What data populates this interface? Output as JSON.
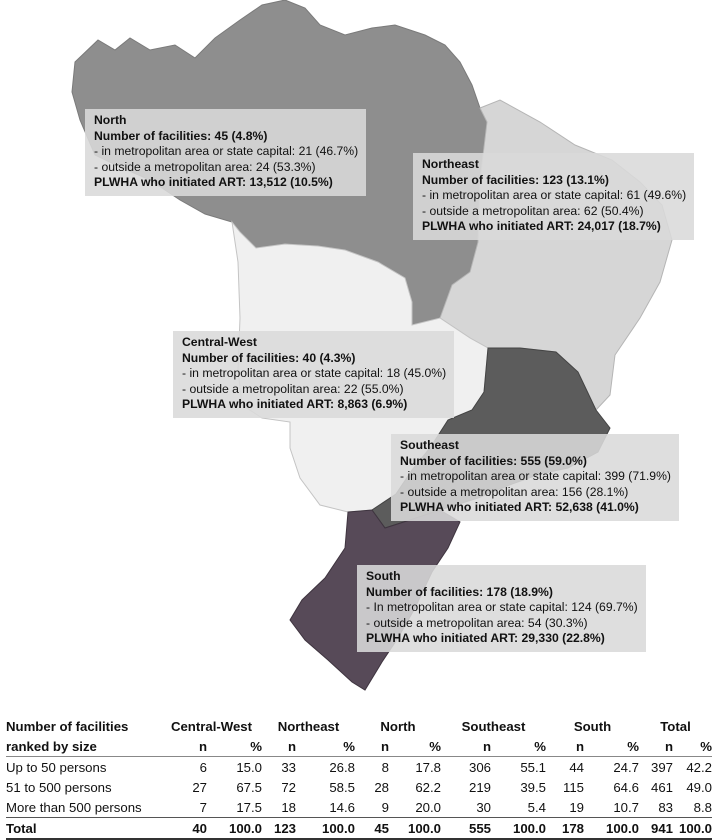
{
  "regions": {
    "north": {
      "name": "North",
      "facilities": "Number of facilities: 45 (4.8%)",
      "metro": " - in metropolitan area or state capital: 21 (46.7%)",
      "outside": " - outside a metropolitan area: 24 (53.3%)",
      "plwha": "PLWHA who initiated ART: 13,512 (10.5%)",
      "color": "#8e8e8e"
    },
    "northeast": {
      "name": "Northeast",
      "facilities": "Number of facilities: 123 (13.1%)",
      "metro": " - in metropolitan area or state capital: 61 (49.6%)",
      "outside": " - outside a metropolitan area: 62 (50.4%)",
      "plwha": "PLWHA who initiated ART: 24,017 (18.7%)",
      "color": "#d6d6d6"
    },
    "central_west": {
      "name": "Central-West",
      "facilities": "Number of facilities: 40 (4.3%)",
      "metro": " - in metropolitan area or state capital: 18 (45.0%)",
      "outside": " - outside a metropolitan area: 22 (55.0%)",
      "plwha": "PLWHA who initiated ART: 8,863 (6.9%)",
      "color": "#f0f0f0"
    },
    "southeast": {
      "name": "Southeast",
      "facilities": "Number of facilities: 555 (59.0%)",
      "metro": " - in metropolitan area or state capital: 399 (71.9%)",
      "outside": " - outside a metropolitan area: 156 (28.1%)",
      "plwha": "PLWHA who initiated ART: 52,638 (41.0%)",
      "color": "#5c5c5c"
    },
    "south": {
      "name": "South",
      "facilities": "Number of facilities: 178 (18.9%)",
      "metro": " - In metropolitan area or state capital: 124 (69.7%)",
      "outside": " - outside a metropolitan area: 54 (30.3%)",
      "plwha": "PLWHA who initiated ART: 29,330 (22.8%)",
      "color": "#574a58"
    }
  },
  "table": {
    "title_line1": "Number of facilities",
    "title_line2": "ranked by size",
    "columns": [
      "Central-West",
      "Northeast",
      "North",
      "Southeast",
      "South",
      "Total"
    ],
    "sub_n": "n",
    "sub_pct": "%",
    "rows": [
      {
        "label": "Up to 50 persons",
        "values": [
          "6",
          "15.0",
          "33",
          "26.8",
          "8",
          "17.8",
          "306",
          "55.1",
          "44",
          "24.7",
          "397",
          "42.2"
        ]
      },
      {
        "label": "51 to 500 persons",
        "values": [
          "27",
          "67.5",
          "72",
          "58.5",
          "28",
          "62.2",
          "219",
          "39.5",
          "115",
          "64.6",
          "461",
          "49.0"
        ]
      },
      {
        "label": "More than 500 persons",
        "values": [
          "7",
          "17.5",
          "18",
          "14.6",
          "9",
          "20.0",
          "30",
          "5.4",
          "19",
          "10.7",
          "83",
          "8.8"
        ]
      }
    ],
    "total": {
      "label": "Total",
      "values": [
        "40",
        "100.0",
        "123",
        "100.0",
        "45",
        "100.0",
        "555",
        "100.0",
        "178",
        "100.0",
        "941",
        "100.0"
      ]
    }
  }
}
